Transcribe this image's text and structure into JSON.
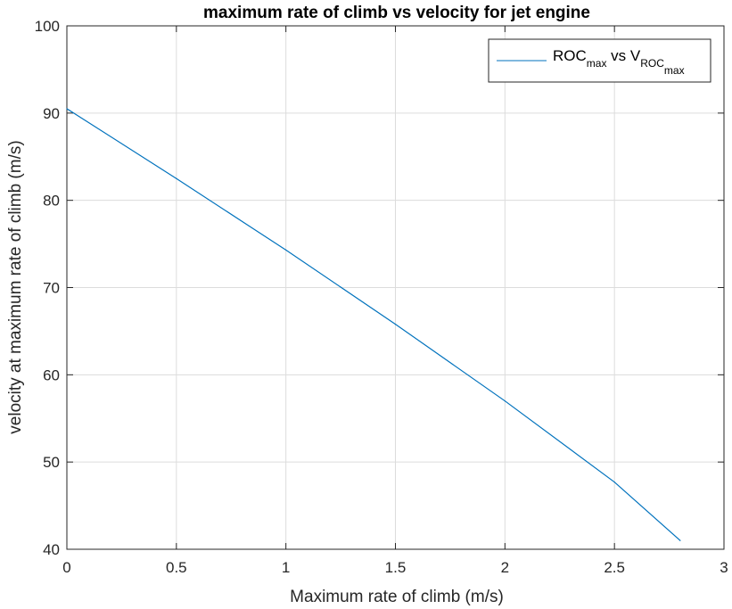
{
  "chart_data": {
    "type": "line",
    "title": "maximum rate of climb vs velocity for jet engine",
    "xlabel": "Maximum rate of climb (m/s)",
    "ylabel": "velocity at maximum rate of climb (m/s)",
    "xlim": [
      0,
      3
    ],
    "ylim": [
      40,
      100
    ],
    "xticks": [
      0,
      0.5,
      1,
      1.5,
      2,
      2.5,
      3
    ],
    "xtick_labels": [
      "0",
      "0.5",
      "1",
      "1.5",
      "2",
      "2.5",
      "3"
    ],
    "yticks": [
      40,
      50,
      60,
      70,
      80,
      90,
      100
    ],
    "ytick_labels": [
      "40",
      "50",
      "60",
      "70",
      "80",
      "90",
      "100"
    ],
    "grid": true,
    "legend_position": "top-right",
    "legend": {
      "main": "ROC",
      "sub1": "max",
      "mid": " vs V",
      "sub2": "ROC",
      "subsub": "max"
    },
    "series": [
      {
        "color": "#0072BD",
        "x": [
          0,
          0.5,
          1,
          1.5,
          2,
          2.5,
          2.8
        ],
        "y": [
          90.5,
          82.5,
          74.3,
          65.8,
          57.0,
          47.7,
          41.0
        ]
      }
    ]
  }
}
